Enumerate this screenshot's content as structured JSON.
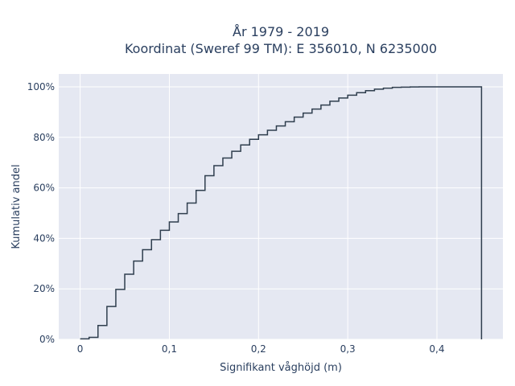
{
  "chart_data": {
    "type": "line",
    "line_shape": "step",
    "title": [
      "År 1979 - 2019",
      "Koordinat (Sweref 99 TM): E 356010, N 6235000"
    ],
    "xlabel": "Signifikant våghöjd (m)",
    "ylabel": "Kumulativ andel",
    "xlim": [
      -0.024,
      0.474
    ],
    "ylim": [
      0,
      1.05
    ],
    "xticks": [
      0,
      0.1,
      0.2,
      0.3,
      0.4
    ],
    "xtick_labels": [
      "0",
      "0,1",
      "0,2",
      "0,3",
      "0,4"
    ],
    "yticks": [
      0,
      0.2,
      0.4,
      0.6,
      0.8,
      1.0
    ],
    "ytick_labels": [
      "0%",
      "20%",
      "40%",
      "60%",
      "80%",
      "100%"
    ],
    "grid": true,
    "colors": {
      "line": "#2f3e4e",
      "plot_bg": "#e5e8f2",
      "grid": "#ffffff",
      "text": "#2a3f5f"
    },
    "x": [
      0,
      0.01,
      0.02,
      0.03,
      0.04,
      0.05,
      0.06,
      0.07,
      0.08,
      0.09,
      0.1,
      0.11,
      0.12,
      0.13,
      0.14,
      0.15,
      0.16,
      0.17,
      0.18,
      0.19,
      0.2,
      0.21,
      0.22,
      0.23,
      0.24,
      0.25,
      0.26,
      0.27,
      0.28,
      0.29,
      0.3,
      0.31,
      0.32,
      0.33,
      0.34,
      0.35,
      0.36,
      0.37,
      0.38,
      0.39,
      0.4,
      0.45
    ],
    "y": [
      0.002,
      0.008,
      0.055,
      0.13,
      0.198,
      0.258,
      0.31,
      0.355,
      0.395,
      0.432,
      0.465,
      0.498,
      0.54,
      0.59,
      0.648,
      0.688,
      0.718,
      0.745,
      0.77,
      0.792,
      0.81,
      0.828,
      0.845,
      0.862,
      0.88,
      0.896,
      0.912,
      0.928,
      0.943,
      0.956,
      0.967,
      0.977,
      0.985,
      0.991,
      0.995,
      0.998,
      0.999,
      0.9995,
      1.0,
      1.0,
      1.0,
      0
    ]
  }
}
